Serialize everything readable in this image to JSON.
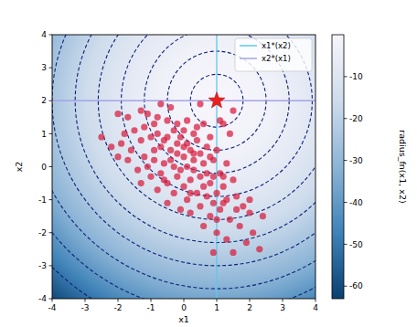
{
  "chart_data": {
    "type": "scatter",
    "x_label": "x1",
    "y_label": "x2",
    "xlim": [
      -4,
      4
    ],
    "ylim": [
      -4,
      4
    ],
    "xticks": [
      -4,
      -3,
      -2,
      -1,
      0,
      1,
      2,
      3,
      4
    ],
    "yticks": [
      -4,
      -3,
      -2,
      -1,
      0,
      1,
      2,
      3,
      4
    ],
    "grid": false,
    "legend": "upper right",
    "colorbar": {
      "label": "radius_fn(x1, x2)",
      "range": [
        -63,
        0
      ],
      "ticks": [
        -10,
        -20,
        -30,
        -40,
        -50,
        -60
      ]
    },
    "contour_levels": [
      -0.64,
      -2.25,
      -4.84,
      -8.41,
      -12.96,
      -18.49,
      -25,
      -32.49,
      -40.96,
      -50.41,
      -60.84
    ],
    "series": [
      {
        "name": "x1*(x2)",
        "type": "line",
        "color": "#5ec8f2",
        "line_style": "solid",
        "x": [
          1,
          1
        ],
        "values": [
          -4,
          4
        ]
      },
      {
        "name": "x2*(x1)",
        "type": "line",
        "color": "#a3a3e6",
        "line_style": "solid",
        "x": [
          -4,
          4
        ],
        "values": [
          2,
          2
        ]
      },
      {
        "type": "scatter",
        "color": "#d81b3c",
        "marker": "circle",
        "x": [
          -2.0,
          -1.7,
          -1.3,
          -1.1,
          -0.7,
          -0.4,
          0.5,
          1.5,
          1.2,
          -1.5,
          -1.2,
          -0.9,
          -0.5,
          0.1,
          0.6,
          0.3,
          0.8,
          1.4,
          -2.5,
          -2.2,
          -1.9,
          -1.6,
          -1.3,
          -1.0,
          -0.8,
          -0.6,
          -0.3,
          -0.1,
          0.1,
          0.4,
          -0.7,
          -0.4,
          -0.2,
          0.0,
          0.2,
          0.5,
          0.7,
          -1.2,
          -0.9,
          -0.6,
          -0.3,
          0.1,
          0.3,
          0.6,
          0.9,
          -1.7,
          -1.4,
          -1.0,
          -0.7,
          -0.5,
          -0.2,
          0.0,
          0.2,
          0.5,
          0.8,
          1.1,
          1.3,
          -1.3,
          -0.8,
          -0.3,
          0.4,
          0.7,
          1.0,
          1.2,
          1.5,
          -0.5,
          0.1,
          0.5,
          0.9,
          1.3,
          1.6,
          1.8,
          0.2,
          0.8,
          1.1,
          1.4,
          2.0,
          2.4,
          1.7,
          0.6,
          1.0,
          1.3,
          1.9,
          2.1,
          0.9,
          1.5,
          2.3,
          -0.4,
          0.0,
          -0.1,
          0.3,
          -0.6,
          -0.2,
          0.6,
          0.2,
          1.0,
          -0.9,
          -1.1,
          0.4,
          -0.2,
          1.2,
          1.6,
          0.7,
          0.9,
          0.0,
          -0.5,
          0.3,
          -0.8,
          1.1,
          -1.8,
          2.0,
          1.0,
          -0.1,
          -2.0,
          0.8,
          1.2
        ],
        "values": [
          1.6,
          1.5,
          1.7,
          1.6,
          1.9,
          1.8,
          1.9,
          1.7,
          1.3,
          1.1,
          1.2,
          1.3,
          1.4,
          1.4,
          1.3,
          1.0,
          0.9,
          1.0,
          0.9,
          0.6,
          0.7,
          0.5,
          0.8,
          0.9,
          1.0,
          0.8,
          1.1,
          0.9,
          0.7,
          0.8,
          0.6,
          0.5,
          0.4,
          0.3,
          0.5,
          0.4,
          0.6,
          0.3,
          0.2,
          0.1,
          0.0,
          0.0,
          -0.1,
          0.1,
          0.2,
          0.2,
          -0.1,
          -0.3,
          -0.2,
          -0.5,
          -0.3,
          -0.6,
          -0.4,
          -0.3,
          -0.5,
          -0.2,
          0.1,
          -0.5,
          -0.7,
          -0.8,
          -0.8,
          -0.9,
          -0.8,
          -0.6,
          -0.4,
          -1.1,
          -1.0,
          -1.2,
          -1.1,
          -1.0,
          -0.9,
          -1.2,
          -1.4,
          -1.5,
          -1.3,
          -1.6,
          -1.4,
          -1.5,
          -1.8,
          -1.8,
          -2.0,
          -2.2,
          -2.3,
          -2.0,
          -2.6,
          -2.6,
          -2.5,
          0.2,
          0.6,
          -0.1,
          0.2,
          -0.4,
          0.7,
          -0.6,
          -0.8,
          0.5,
          0.5,
          0.0,
          1.2,
          1.3,
          -1.1,
          -1.3,
          -0.2,
          -0.3,
          1.1,
          0.9,
          0.4,
          1.5,
          1.4,
          1.0,
          -1.0,
          -1.6,
          -1.3,
          0.3,
          0.3,
          -0.3
        ]
      },
      {
        "type": "scatter",
        "color": "#e8211f",
        "marker": "star",
        "x": [
          1
        ],
        "values": [
          2
        ]
      }
    ]
  }
}
